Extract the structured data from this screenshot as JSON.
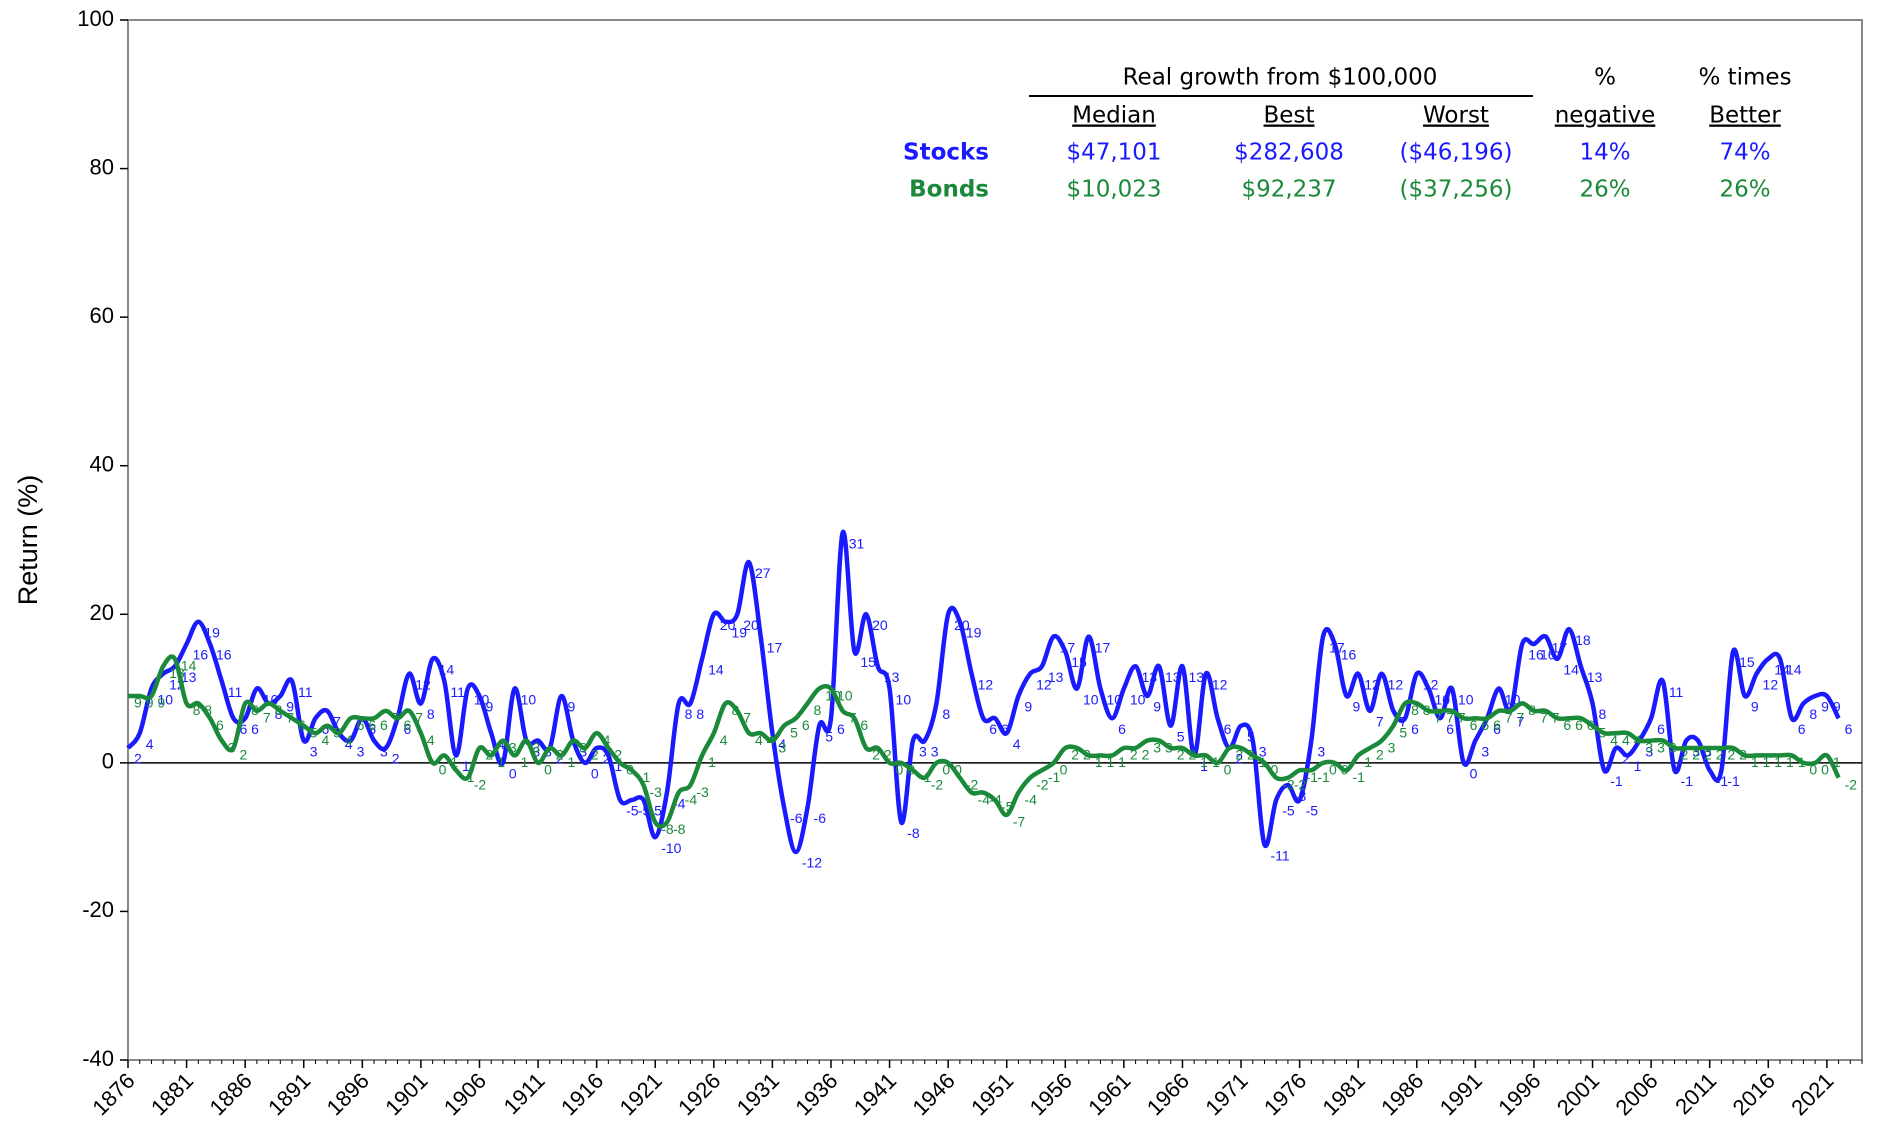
{
  "chart_data": {
    "type": "line",
    "y_label": "Return (%)",
    "ylim": [
      -40,
      100
    ],
    "yticks": [
      -40,
      -20,
      0,
      20,
      40,
      60,
      80,
      100
    ],
    "xlim": [
      1876,
      2024
    ],
    "xticks": [
      1876,
      1881,
      1886,
      1891,
      1896,
      1901,
      1906,
      1911,
      1916,
      1921,
      1926,
      1931,
      1936,
      1941,
      1946,
      1951,
      1956,
      1961,
      1966,
      1971,
      1976,
      1981,
      1986,
      1991,
      1996,
      2001,
      2006,
      2011,
      2016,
      2021
    ],
    "x": [
      1876,
      1877,
      1878,
      1879,
      1880,
      1881,
      1882,
      1883,
      1884,
      1885,
      1886,
      1887,
      1888,
      1889,
      1890,
      1891,
      1892,
      1893,
      1894,
      1895,
      1896,
      1897,
      1898,
      1899,
      1900,
      1901,
      1902,
      1903,
      1904,
      1905,
      1906,
      1907,
      1908,
      1909,
      1910,
      1911,
      1912,
      1913,
      1914,
      1915,
      1916,
      1917,
      1918,
      1919,
      1920,
      1921,
      1922,
      1923,
      1924,
      1925,
      1926,
      1927,
      1928,
      1929,
      1930,
      1931,
      1932,
      1933,
      1934,
      1935,
      1936,
      1937,
      1938,
      1939,
      1940,
      1941,
      1942,
      1943,
      1944,
      1945,
      1946,
      1947,
      1948,
      1949,
      1950,
      1951,
      1952,
      1953,
      1954,
      1955,
      1956,
      1957,
      1958,
      1959,
      1960,
      1961,
      1962,
      1963,
      1964,
      1965,
      1966,
      1967,
      1968,
      1969,
      1970,
      1971,
      1972,
      1973,
      1974,
      1975,
      1976,
      1977,
      1978,
      1979,
      1980,
      1981,
      1982,
      1983,
      1984,
      1985,
      1986,
      1987,
      1988,
      1989,
      1990,
      1991,
      1992,
      1993,
      1994,
      1995,
      1996,
      1997,
      1998,
      1999,
      2000,
      2001,
      2002,
      2003,
      2004,
      2005,
      2006,
      2007,
      2008,
      2009,
      2010,
      2011,
      2012,
      2013,
      2014,
      2015,
      2016,
      2017,
      2018,
      2019,
      2020,
      2021,
      2022
    ],
    "series": [
      {
        "name": "Stocks",
        "color": "#1a1aff",
        "values": [
          2,
          4,
          10,
          12,
          13,
          16,
          19,
          16,
          11,
          6,
          6,
          10,
          8,
          9,
          11,
          3,
          6,
          7,
          4,
          3,
          6,
          3,
          2,
          6,
          12,
          8,
          14,
          11,
          1,
          10,
          9,
          4,
          0,
          10,
          3,
          3,
          2,
          9,
          3,
          0,
          2,
          1,
          -5,
          -5,
          -5,
          -10,
          -4,
          8,
          8,
          14,
          20,
          19,
          20,
          27,
          17,
          4,
          -6,
          -12,
          -6,
          5,
          6,
          31,
          15,
          20,
          13,
          10,
          -8,
          3,
          3,
          8,
          20,
          19,
          12,
          6,
          6,
          4,
          9,
          12,
          13,
          17,
          15,
          10,
          17,
          10,
          6,
          10,
          13,
          9,
          13,
          5,
          13,
          1,
          12,
          6,
          2,
          5,
          3,
          -11,
          -5,
          -3,
          -5,
          3,
          17,
          16,
          9,
          12,
          7,
          12,
          7,
          6,
          12,
          10,
          6,
          10,
          0,
          3,
          6,
          10,
          7,
          16,
          16,
          17,
          14,
          18,
          13,
          8,
          -1,
          2,
          1,
          3,
          6,
          11,
          -1,
          3,
          3,
          -1,
          -1,
          15,
          9,
          12,
          14,
          14,
          6,
          8,
          9,
          9,
          6
        ]
      },
      {
        "name": "Bonds",
        "color": "#1a8a3a",
        "values": [
          9,
          9,
          9,
          13,
          14,
          8,
          8,
          6,
          3,
          2,
          8,
          7,
          8,
          7,
          6,
          5,
          4,
          5,
          4,
          6,
          6,
          6,
          7,
          6,
          7,
          4,
          0,
          1,
          -1,
          -2,
          2,
          1,
          3,
          1,
          3,
          0,
          2,
          1,
          3,
          2,
          4,
          2,
          0,
          -1,
          -3,
          -8,
          -8,
          -4,
          -3,
          1,
          4,
          8,
          7,
          4,
          4,
          3,
          5,
          6,
          8,
          10,
          10,
          7,
          6,
          2,
          2,
          0,
          0,
          -1,
          -2,
          0,
          0,
          -2,
          -4,
          -4,
          -5,
          -7,
          -4,
          -2,
          -1,
          0,
          2,
          2,
          1,
          1,
          1,
          2,
          2,
          3,
          3,
          2,
          2,
          1,
          1,
          0,
          2,
          2,
          1,
          0,
          -2,
          -2,
          -1,
          -1,
          0,
          0,
          -1,
          1,
          2,
          3,
          5,
          8,
          8,
          7,
          7,
          7,
          6,
          6,
          6,
          7,
          7,
          8,
          7,
          7,
          6,
          6,
          6,
          5,
          4,
          4,
          4,
          3,
          3,
          3,
          2,
          2,
          2,
          2,
          2,
          2,
          1,
          1,
          1,
          1,
          1,
          0,
          0,
          1,
          -2
        ]
      }
    ],
    "table": {
      "title": "Real growth from $100,000",
      "columns": [
        [
          "Median"
        ],
        [
          "Best"
        ],
        [
          "Worst"
        ],
        [
          "%",
          "negative"
        ],
        [
          "% times",
          "Better"
        ]
      ],
      "rows": [
        [
          "$47,101",
          "$282,608",
          "($46,196)",
          "14%",
          "74%"
        ],
        [
          "$10,023",
          "$92,237",
          "($37,256)",
          "26%",
          "26%"
        ]
      ]
    }
  }
}
